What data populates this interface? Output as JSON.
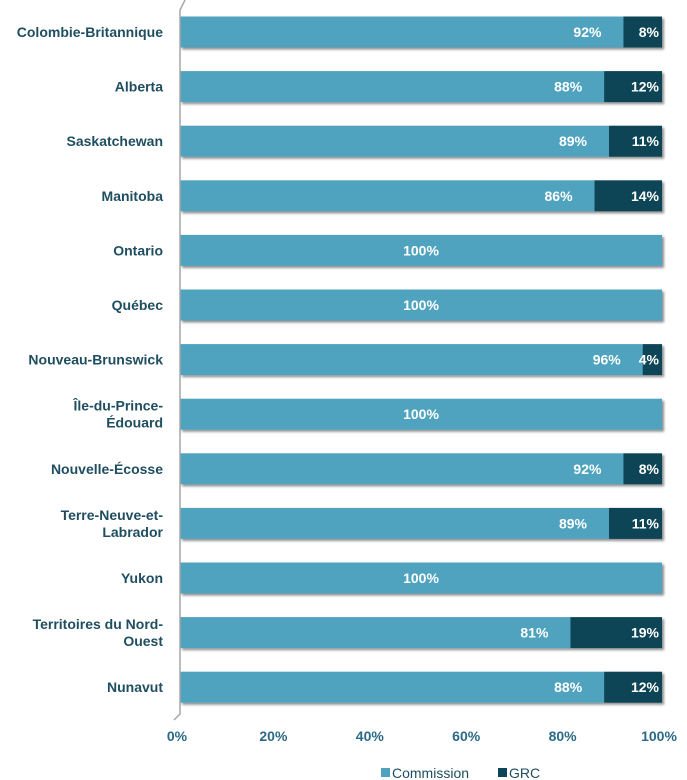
{
  "chart_data": {
    "type": "bar",
    "orientation": "horizontal",
    "stacked": true,
    "categories": [
      "Colombie-Britannique",
      "Alberta",
      "Saskatchewan",
      "Manitoba",
      "Ontario",
      "Québec",
      "Nouveau-Brunswick",
      "Île-du-Prince-Édouard",
      "Nouvelle-Écosse",
      "Terre-Neuve-et-Labrador",
      "Yukon",
      "Territoires du Nord-Ouest",
      "Nunavut"
    ],
    "category_label_lines": [
      [
        "Colombie-Britannique"
      ],
      [
        "Alberta"
      ],
      [
        "Saskatchewan"
      ],
      [
        "Manitoba"
      ],
      [
        "Ontario"
      ],
      [
        "Québec"
      ],
      [
        "Nouveau-Brunswick"
      ],
      [
        "Île-du-Prince-",
        "Édouard"
      ],
      [
        "Nouvelle-Écosse"
      ],
      [
        "Terre-Neuve-et-",
        "Labrador"
      ],
      [
        "Yukon"
      ],
      [
        "Territoires du Nord-",
        "Ouest"
      ],
      [
        "Nunavut"
      ]
    ],
    "series": [
      {
        "name": "Commission",
        "color": "#4fa3bf",
        "values": [
          92,
          88,
          89,
          86,
          100,
          100,
          96,
          100,
          92,
          89,
          100,
          81,
          88
        ]
      },
      {
        "name": "GRC",
        "color": "#0d4457",
        "values": [
          8,
          12,
          11,
          14,
          0,
          0,
          4,
          0,
          8,
          11,
          0,
          19,
          12
        ]
      }
    ],
    "x_ticks": [
      "0%",
      "20%",
      "40%",
      "60%",
      "80%",
      "100%"
    ],
    "xlim": [
      0,
      100
    ],
    "legend_position": "bottom",
    "grid": false
  }
}
